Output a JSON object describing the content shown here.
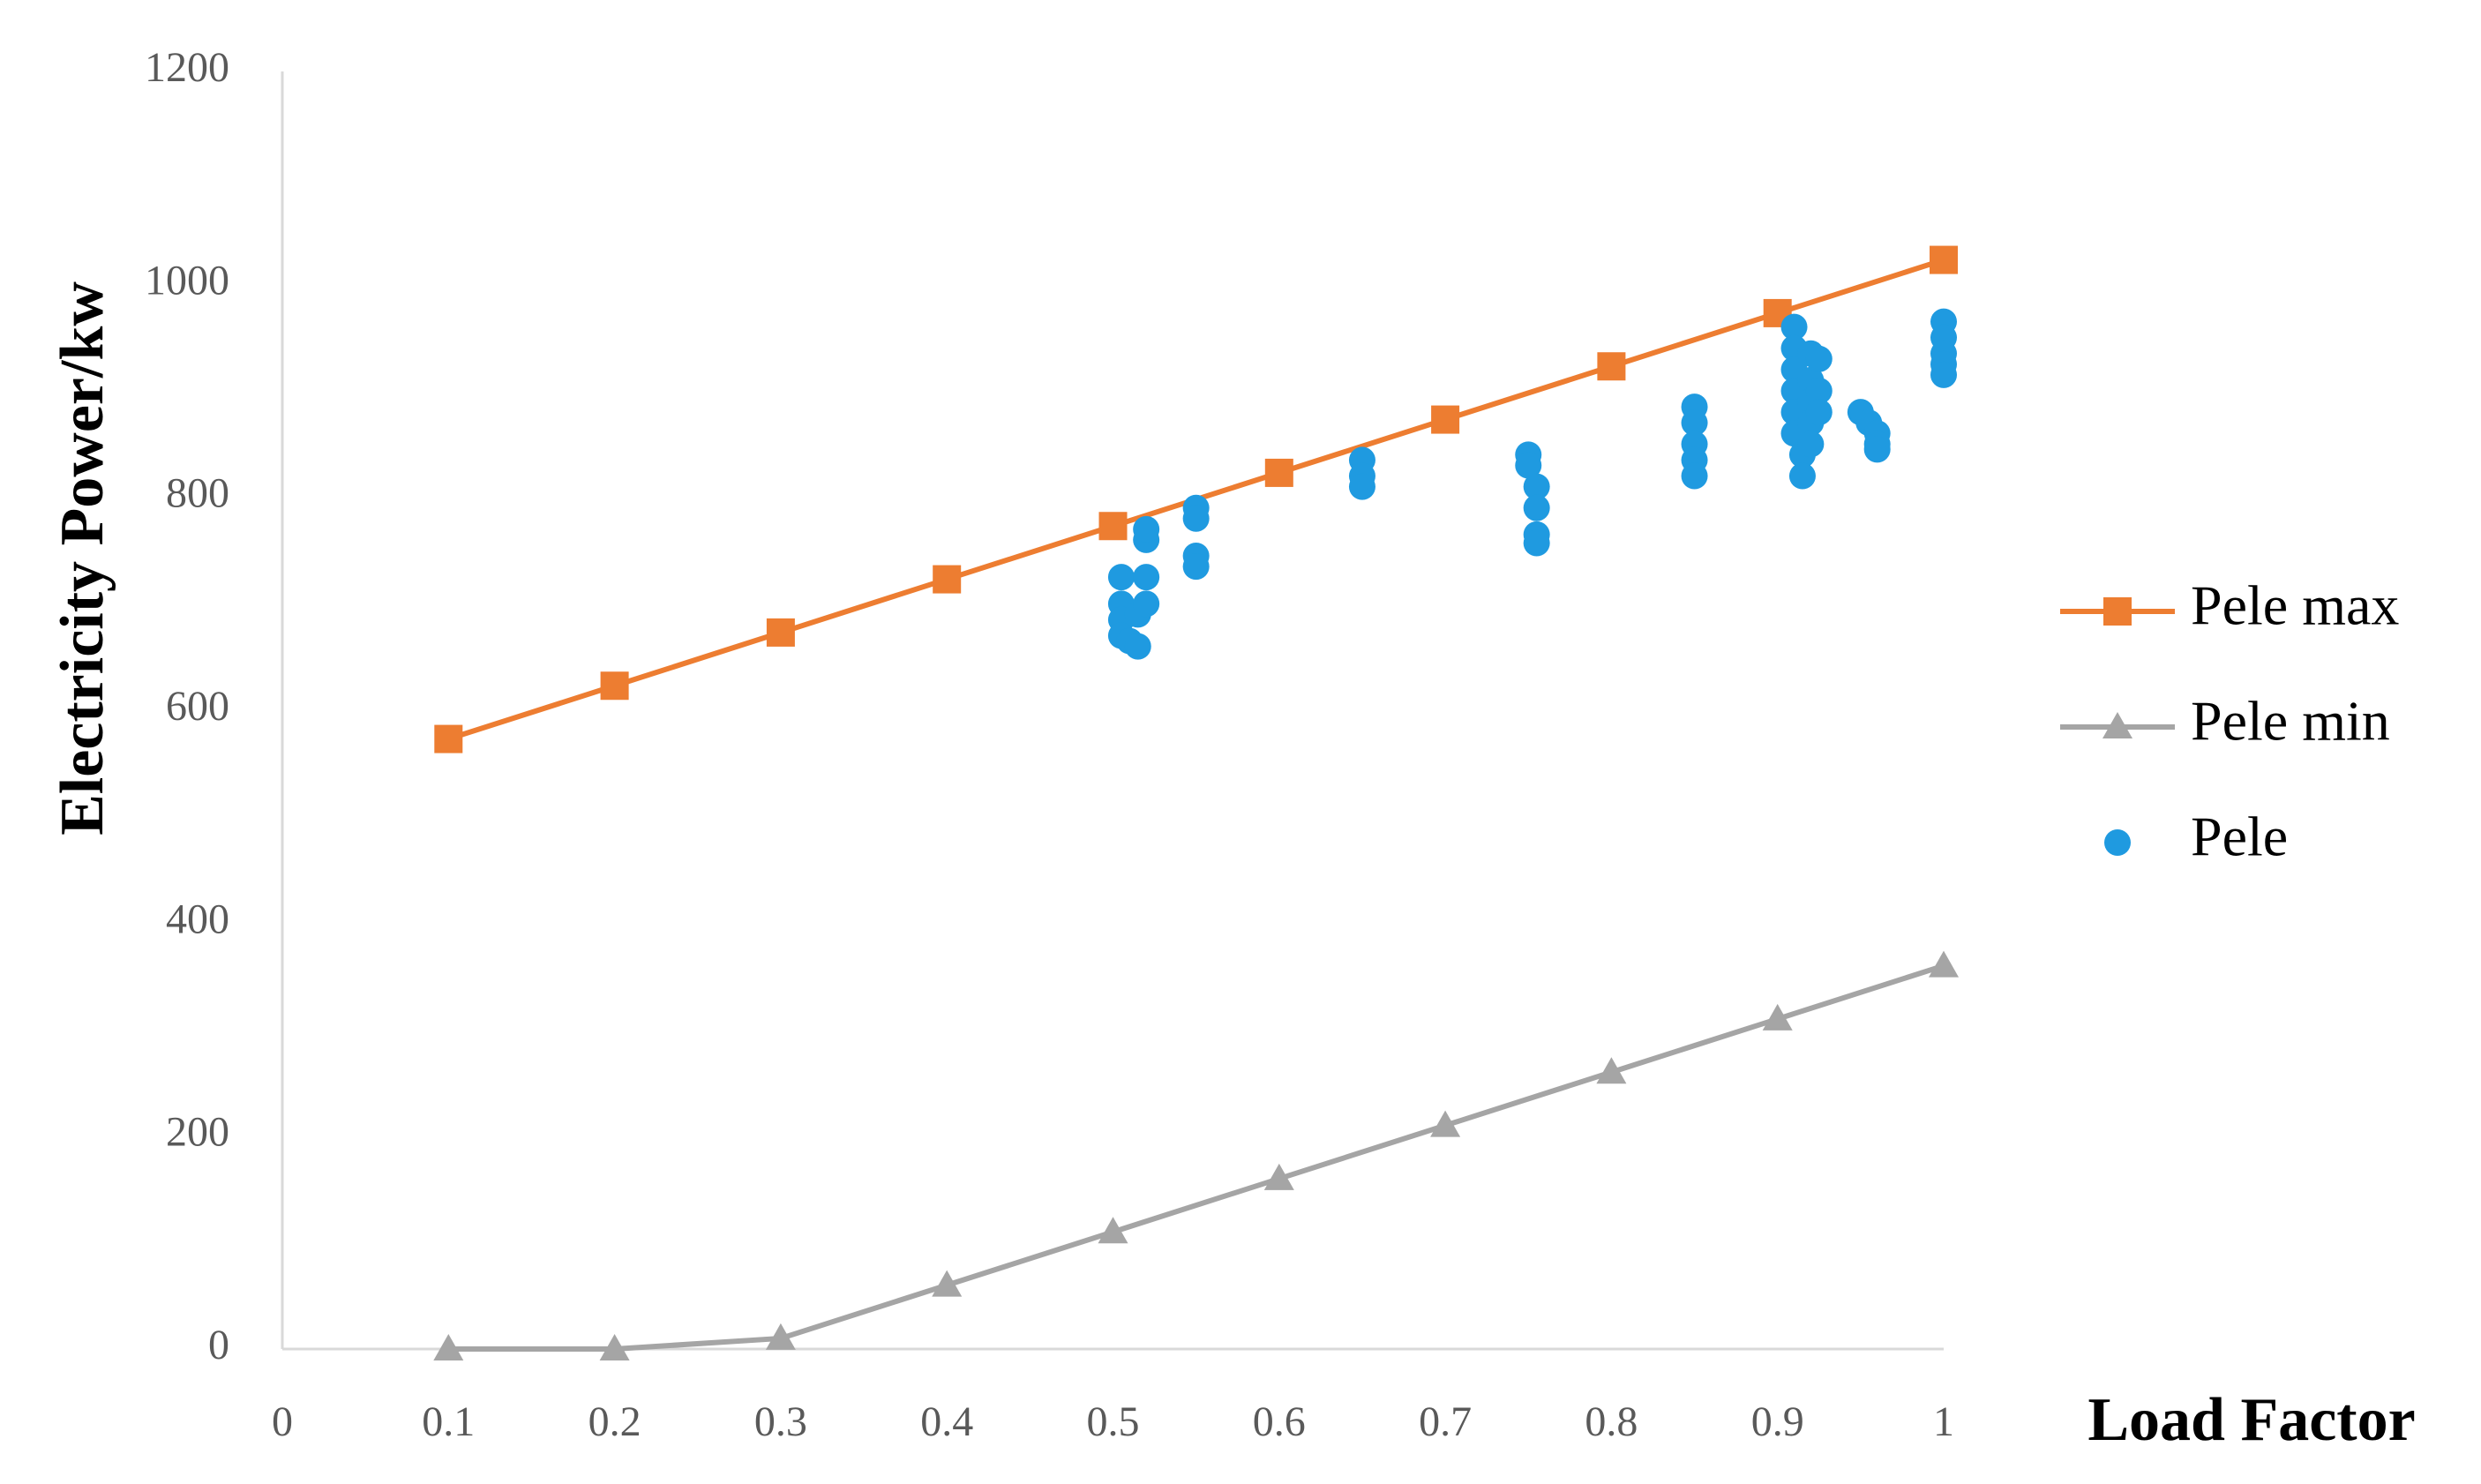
{
  "chart_data": {
    "type": "line",
    "xlabel": "Load Factor",
    "ylabel": "Electricity Power/kw",
    "xlim": [
      0,
      1
    ],
    "xticks": [
      0,
      0.1,
      0.2,
      0.3,
      0.4,
      0.5,
      0.6,
      0.7,
      0.8,
      0.9,
      1
    ],
    "ylim": [
      0,
      1200
    ],
    "yticks": [
      0,
      200,
      400,
      600,
      800,
      1000,
      1200
    ],
    "grid": false,
    "legend": "right",
    "series": [
      {
        "name": "Pele max",
        "color": "#ED7D31",
        "marker": "square",
        "line": true,
        "x": [
          0.1,
          0.2,
          0.3,
          0.4,
          0.5,
          0.6,
          0.7,
          0.8,
          0.9,
          1
        ],
        "values": [
          573,
          623,
          673,
          723,
          773,
          823,
          873,
          923,
          973,
          1023
        ]
      },
      {
        "name": "Pele min",
        "color": "#A5A5A5",
        "marker": "triangle",
        "line": true,
        "x": [
          0.1,
          0.2,
          0.3,
          0.4,
          0.5,
          0.6,
          0.7,
          0.8,
          0.9,
          1
        ],
        "values": [
          0,
          0,
          10,
          60,
          110,
          160,
          210,
          260,
          310,
          360
        ]
      },
      {
        "name": "Pele",
        "color": "#1F9AE0",
        "marker": "circle",
        "line": false,
        "x": [
          0.505,
          0.505,
          0.505,
          0.505,
          0.51,
          0.515,
          0.515,
          0.52,
          0.52,
          0.52,
          0.52,
          0.55,
          0.55,
          0.55,
          0.55,
          0.65,
          0.65,
          0.65,
          0.75,
          0.75,
          0.755,
          0.755,
          0.755,
          0.755,
          0.85,
          0.85,
          0.85,
          0.85,
          0.85,
          0.91,
          0.91,
          0.91,
          0.91,
          0.91,
          0.91,
          0.915,
          0.915,
          0.92,
          0.92,
          0.92,
          0.92,
          0.92,
          0.925,
          0.925,
          0.925,
          0.95,
          0.955,
          0.96,
          0.96,
          0.96,
          1,
          1,
          1,
          1,
          1
        ],
        "values": [
          725,
          700,
          685,
          670,
          665,
          660,
          690,
          725,
          700,
          760,
          770,
          790,
          780,
          745,
          735,
          835,
          820,
          810,
          840,
          830,
          810,
          790,
          765,
          757,
          885,
          870,
          850,
          835,
          820,
          960,
          940,
          920,
          900,
          880,
          860,
          840,
          820,
          935,
          910,
          890,
          870,
          850,
          930,
          900,
          880,
          880,
          870,
          860,
          850,
          845,
          965,
          950,
          935,
          925,
          915
        ]
      }
    ]
  }
}
